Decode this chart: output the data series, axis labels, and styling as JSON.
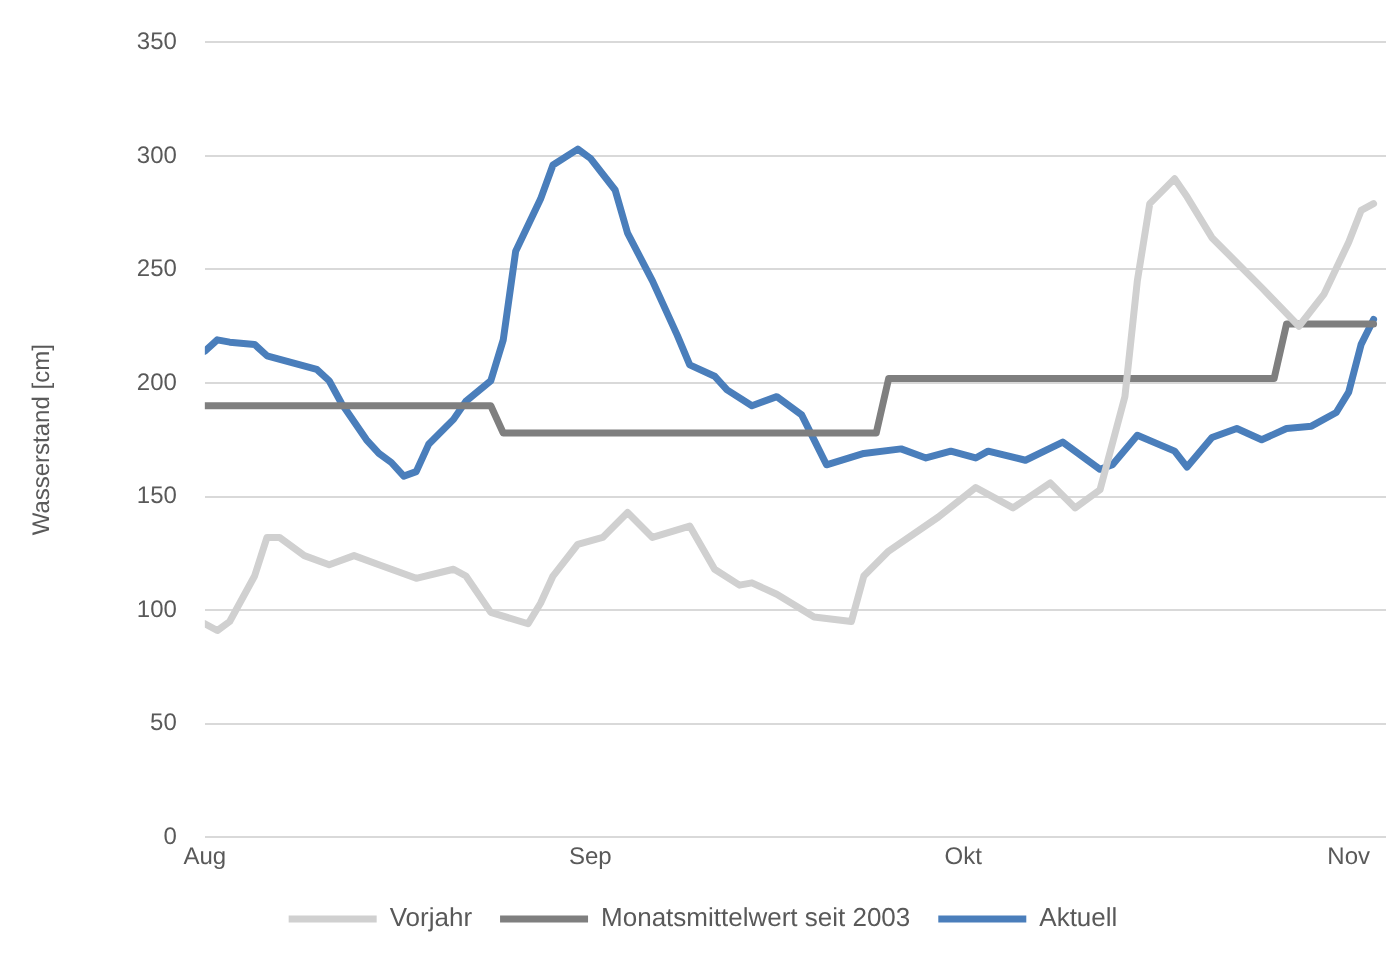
{
  "chart_data": {
    "type": "line",
    "ylabel": "Wasserstand [cm]",
    "xlim": [
      "--08-01",
      "--11-04"
    ],
    "xticks": [
      {
        "value": "--08-01",
        "label": "Aug"
      },
      {
        "value": "--09-01",
        "label": "Sep"
      },
      {
        "value": "--10-01",
        "label": "Okt"
      },
      {
        "value": "--11-01",
        "label": "Nov"
      }
    ],
    "ylim": [
      0,
      350
    ],
    "yticks": [
      0,
      50,
      100,
      150,
      200,
      250,
      300,
      350
    ],
    "grid": "y",
    "legend": "bottom",
    "marker": "none",
    "line_style": "solid",
    "series": [
      {
        "name": "Vorjahr",
        "color": "#d0d0d0",
        "x": [
          "--08-01",
          "--08-02",
          "--08-03",
          "--08-05",
          "--08-06",
          "--08-07",
          "--08-09",
          "--08-11",
          "--08-13",
          "--08-15",
          "--08-18",
          "--08-21",
          "--08-22",
          "--08-24",
          "--08-27",
          "--08-28",
          "--08-29",
          "--08-31",
          "--09-02",
          "--09-04",
          "--09-06",
          "--09-09",
          "--09-11",
          "--09-13",
          "--09-14",
          "--09-16",
          "--09-19",
          "--09-22",
          "--09-23",
          "--09-25",
          "--09-29",
          "--10-02",
          "--10-05",
          "--10-08",
          "--10-10",
          "--10-12",
          "--10-14",
          "--10-15",
          "--10-16",
          "--10-18",
          "--10-19",
          "--10-21",
          "--10-25",
          "--10-28",
          "--10-30",
          "--11-01",
          "--11-02",
          "--11-03"
        ],
        "values": [
          94,
          91,
          95,
          115,
          132,
          132,
          124,
          120,
          124,
          120,
          114,
          118,
          115,
          99,
          94,
          103,
          115,
          129,
          132,
          143,
          132,
          137,
          118,
          111,
          112,
          107,
          97,
          95,
          115,
          126,
          141,
          154,
          145,
          156,
          145,
          153,
          194,
          245,
          279,
          290,
          282,
          264,
          242,
          225,
          239,
          262,
          276,
          279
        ]
      },
      {
        "name": "Monatsmittelwert seit 2003",
        "color": "#7f7f7f",
        "x": [
          "--08-01",
          "--08-24",
          "--08-25",
          "--09-24",
          "--09-25",
          "--10-26",
          "--10-27",
          "--11-03"
        ],
        "values": [
          190,
          190,
          178,
          178,
          202,
          202,
          226,
          226
        ]
      },
      {
        "name": "Aktuell",
        "color": "#4a7ebb",
        "x": [
          "--08-01",
          "--08-02",
          "--08-03",
          "--08-05",
          "--08-06",
          "--08-08",
          "--08-10",
          "--08-11",
          "--08-12",
          "--08-14",
          "--08-15",
          "--08-16",
          "--08-17",
          "--08-18",
          "--08-19",
          "--08-21",
          "--08-22",
          "--08-24",
          "--08-25",
          "--08-26",
          "--08-28",
          "--08-29",
          "--08-31",
          "--09-01",
          "--09-03",
          "--09-04",
          "--09-06",
          "--09-08",
          "--09-09",
          "--09-11",
          "--09-12",
          "--09-14",
          "--09-16",
          "--09-18",
          "--09-20",
          "--09-23",
          "--09-26",
          "--09-28",
          "--09-30",
          "--10-02",
          "--10-03",
          "--10-06",
          "--10-09",
          "--10-12",
          "--10-13",
          "--10-15",
          "--10-18",
          "--10-19",
          "--10-21",
          "--10-23",
          "--10-25",
          "--10-27",
          "--10-29",
          "--10-31",
          "--11-01",
          "--11-02",
          "--11-03"
        ],
        "values": [
          214,
          219,
          218,
          217,
          212,
          209,
          206,
          201,
          191,
          175,
          169,
          165,
          159,
          161,
          173,
          184,
          192,
          201,
          219,
          258,
          281,
          296,
          303,
          299,
          285,
          266,
          245,
          221,
          208,
          203,
          197,
          190,
          194,
          186,
          164,
          169,
          171,
          167,
          170,
          167,
          170,
          166,
          174,
          162,
          164,
          177,
          170,
          163,
          176,
          180,
          175,
          180,
          181,
          187,
          196,
          217,
          228
        ]
      }
    ]
  }
}
